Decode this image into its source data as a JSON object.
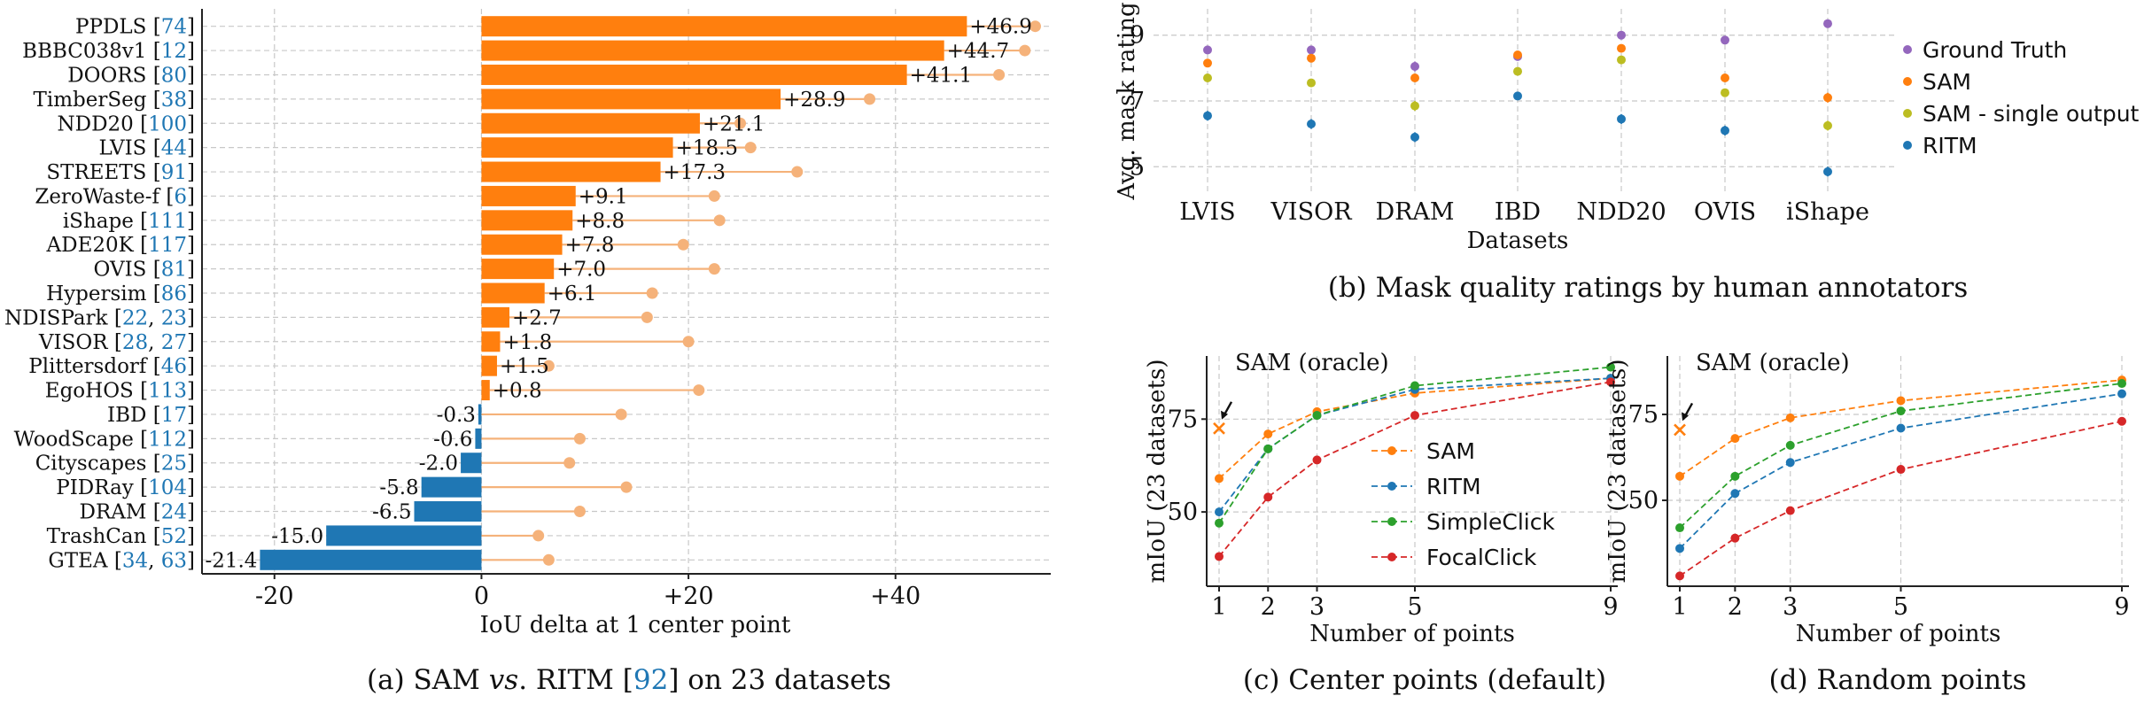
{
  "chart_data": [
    {
      "id": "a",
      "type": "bar",
      "caption_prefix": "(a) SAM ",
      "caption_vs": "vs",
      "caption_mid": ". RITM [",
      "caption_ref": "92",
      "caption_suffix": "] on 23 datasets",
      "xlabel": "IoU delta at 1 center point",
      "xlim": [
        -27,
        55
      ],
      "xticks": [
        -20,
        0,
        20,
        40
      ],
      "xtick_labels": [
        "-20",
        "0",
        "+20",
        "+40"
      ],
      "bar_colors": {
        "positive": "#ff7f0e",
        "negative": "#1f77b4",
        "marker": "#f5b27a"
      },
      "items": [
        {
          "name": "PPDLS",
          "refs": [
            "74"
          ],
          "value": 46.9,
          "label": "+46.9",
          "marker": 53.5
        },
        {
          "name": "BBBC038v1",
          "refs": [
            "12"
          ],
          "value": 44.7,
          "label": "+44.7",
          "marker": 52.5
        },
        {
          "name": "DOORS",
          "refs": [
            "80"
          ],
          "value": 41.1,
          "label": "+41.1",
          "marker": 50.0
        },
        {
          "name": "TimberSeg",
          "refs": [
            "38"
          ],
          "value": 28.9,
          "label": "+28.9",
          "marker": 37.5
        },
        {
          "name": "NDD20",
          "refs": [
            "100"
          ],
          "value": 21.1,
          "label": "+21.1",
          "marker": 25.0
        },
        {
          "name": "LVIS",
          "refs": [
            "44"
          ],
          "value": 18.5,
          "label": "+18.5",
          "marker": 26.0
        },
        {
          "name": "STREETS",
          "refs": [
            "91"
          ],
          "value": 17.3,
          "label": "+17.3",
          "marker": 30.5
        },
        {
          "name": "ZeroWaste-f",
          "refs": [
            "6"
          ],
          "value": 9.1,
          "label": "+9.1",
          "marker": 22.5
        },
        {
          "name": "iShape",
          "refs": [
            "111"
          ],
          "value": 8.8,
          "label": "+8.8",
          "marker": 23.0
        },
        {
          "name": "ADE20K",
          "refs": [
            "117"
          ],
          "value": 7.8,
          "label": "+7.8",
          "marker": 19.5
        },
        {
          "name": "OVIS",
          "refs": [
            "81"
          ],
          "value": 7.0,
          "label": "+7.0",
          "marker": 22.5
        },
        {
          "name": "Hypersim",
          "refs": [
            "86"
          ],
          "value": 6.1,
          "label": "+6.1",
          "marker": 16.5
        },
        {
          "name": "NDISPark",
          "refs": [
            "22",
            "23"
          ],
          "value": 2.7,
          "label": "+2.7",
          "marker": 16.0
        },
        {
          "name": "VISOR",
          "refs": [
            "28",
            "27"
          ],
          "value": 1.8,
          "label": "+1.8",
          "marker": 20.0
        },
        {
          "name": "Plittersdorf",
          "refs": [
            "46"
          ],
          "value": 1.5,
          "label": "+1.5",
          "marker": 6.5
        },
        {
          "name": "EgoHOS",
          "refs": [
            "113"
          ],
          "value": 0.8,
          "label": "+0.8",
          "marker": 21.0
        },
        {
          "name": "IBD",
          "refs": [
            "17"
          ],
          "value": -0.3,
          "label": "-0.3",
          "marker": 13.5
        },
        {
          "name": "WoodScape",
          "refs": [
            "112"
          ],
          "value": -0.6,
          "label": "-0.6",
          "marker": 9.5
        },
        {
          "name": "Cityscapes",
          "refs": [
            "25"
          ],
          "value": -2.0,
          "label": "-2.0",
          "marker": 8.5
        },
        {
          "name": "PIDRay",
          "refs": [
            "104"
          ],
          "value": -5.8,
          "label": "-5.8",
          "marker": 14.0
        },
        {
          "name": "DRAM",
          "refs": [
            "24"
          ],
          "value": -6.5,
          "label": "-6.5",
          "marker": 9.5
        },
        {
          "name": "TrashCan",
          "refs": [
            "52"
          ],
          "value": -15.0,
          "label": "-15.0",
          "marker": 5.5
        },
        {
          "name": "GTEA",
          "refs": [
            "34",
            "63"
          ],
          "value": -21.4,
          "label": "-21.4",
          "marker": 6.5
        }
      ]
    },
    {
      "id": "b",
      "type": "scatter",
      "caption": "(b) Mask quality ratings by human annotators",
      "xlabel": "Datasets",
      "ylabel": "Avg. mask rating",
      "ylim": [
        4.2,
        9.8
      ],
      "yticks": [
        5,
        7,
        9
      ],
      "categories": [
        "LVIS",
        "VISOR",
        "DRAM",
        "IBD",
        "NDD20",
        "OVIS",
        "iShape"
      ],
      "legend_position": "right",
      "series": [
        {
          "name": "Ground Truth",
          "color": "#9467bd",
          "values": [
            8.55,
            8.55,
            8.05,
            8.35,
            9.0,
            8.85,
            9.35
          ],
          "err": [
            0.08,
            0.08,
            0.15,
            0.08,
            0.08,
            0.08,
            0.08
          ]
        },
        {
          "name": "SAM",
          "color": "#ff7f0e",
          "values": [
            8.15,
            8.3,
            7.7,
            8.4,
            8.6,
            7.7,
            7.1
          ],
          "err": [
            0.1,
            0.1,
            0.12,
            0.08,
            0.08,
            0.12,
            0.15
          ]
        },
        {
          "name": "SAM - single output",
          "color": "#bcbd22",
          "values": [
            7.7,
            7.55,
            6.85,
            7.9,
            8.25,
            7.25,
            6.25
          ],
          "err": [
            0.12,
            0.12,
            0.15,
            0.1,
            0.1,
            0.12,
            0.15
          ]
        },
        {
          "name": "RITM",
          "color": "#1f77b4",
          "values": [
            6.55,
            6.3,
            5.9,
            7.15,
            6.45,
            6.1,
            4.85
          ],
          "err": [
            0.15,
            0.15,
            0.15,
            0.12,
            0.15,
            0.15,
            0.15
          ]
        }
      ]
    },
    {
      "id": "c",
      "type": "line",
      "caption": "(c) Center points (default)",
      "xlabel": "Number of points",
      "ylabel": "mIoU (23 datasets)",
      "annotation": "SAM (oracle)",
      "oracle_value": 72.5,
      "x": [
        1,
        2,
        3,
        5,
        9
      ],
      "xlim": [
        0.7,
        9.2
      ],
      "ylim": [
        30,
        92
      ],
      "yticks": [
        50,
        75
      ],
      "legend_position": "center-right",
      "series": [
        {
          "name": "SAM",
          "color": "#ff7f0e",
          "values": [
            59,
            71,
            77,
            82,
            86
          ]
        },
        {
          "name": "RITM",
          "color": "#1f77b4",
          "values": [
            50,
            67,
            76,
            83,
            86
          ]
        },
        {
          "name": "SimpleClick",
          "color": "#2ca02c",
          "values": [
            47,
            67,
            76,
            84,
            89
          ]
        },
        {
          "name": "FocalClick",
          "color": "#d62728",
          "values": [
            38,
            54,
            64,
            76,
            85
          ]
        }
      ]
    },
    {
      "id": "d",
      "type": "line",
      "caption": "(d) Random points",
      "xlabel": "Number of points",
      "ylabel": "mIoU (23 datasets)",
      "annotation": "SAM (oracle)",
      "oracle_value": 70.5,
      "x": [
        1,
        2,
        3,
        5,
        9
      ],
      "xlim": [
        0.7,
        9.2
      ],
      "ylim": [
        25,
        92
      ],
      "yticks": [
        50,
        75
      ],
      "series": [
        {
          "name": "SAM",
          "color": "#ff7f0e",
          "values": [
            57,
            68,
            74,
            79,
            85
          ]
        },
        {
          "name": "RITM",
          "color": "#1f77b4",
          "values": [
            36,
            52,
            61,
            71,
            81
          ]
        },
        {
          "name": "SimpleClick",
          "color": "#2ca02c",
          "values": [
            42,
            57,
            66,
            76,
            84
          ]
        },
        {
          "name": "FocalClick",
          "color": "#d62728",
          "values": [
            28,
            39,
            47,
            59,
            73
          ]
        }
      ]
    }
  ]
}
